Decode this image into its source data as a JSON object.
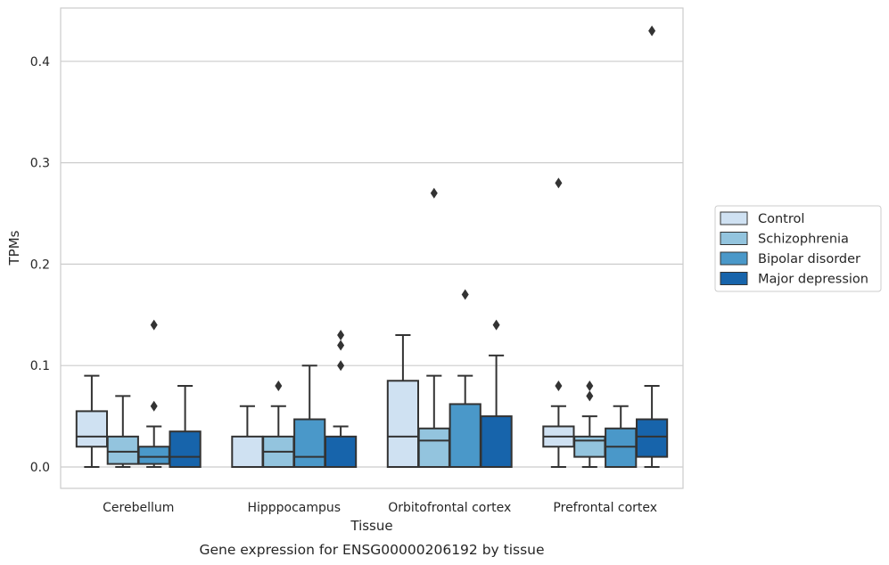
{
  "caption": "Gene expression for ENSG00000206192 by tissue",
  "colors": {
    "Control": "#cfe1f2",
    "Schizophrenia": "#93c4de",
    "Bipolar disorder": "#4a98c9",
    "Major depression": "#1764ab",
    "edge": "#333333",
    "grid": "#cccccc",
    "frame": "#cccccc"
  },
  "chart_data": {
    "type": "box",
    "xlabel": "Tissue",
    "ylabel": "TPMs",
    "ylim": [
      -0.021,
      0.455
    ],
    "yticks": [
      0.0,
      0.1,
      0.2,
      0.3,
      0.4
    ],
    "ytick_labels": [
      "0.0",
      "0.1",
      "0.2",
      "0.3",
      "0.4"
    ],
    "grid": true,
    "legend_position": "right, outside",
    "categories": [
      "Cerebellum",
      "Hipppocampus",
      "Orbitofrontal cortex",
      "Prefrontal cortex"
    ],
    "series": [
      {
        "name": "Control",
        "boxes": [
          {
            "min": 0.0,
            "q1": 0.02,
            "median": 0.03,
            "q3": 0.055,
            "max": 0.09,
            "outliers": []
          },
          {
            "min": 0.0,
            "q1": 0.0,
            "median": 0.0,
            "q3": 0.03,
            "max": 0.06,
            "outliers": []
          },
          {
            "min": 0.0,
            "q1": 0.0,
            "median": 0.03,
            "q3": 0.085,
            "max": 0.13,
            "outliers": []
          },
          {
            "min": 0.0,
            "q1": 0.02,
            "median": 0.03,
            "q3": 0.04,
            "max": 0.06,
            "outliers": [
              0.08,
              0.28
            ]
          }
        ]
      },
      {
        "name": "Schizophrenia",
        "boxes": [
          {
            "min": 0.0,
            "q1": 0.003,
            "median": 0.015,
            "q3": 0.03,
            "max": 0.07,
            "outliers": []
          },
          {
            "min": 0.0,
            "q1": 0.0,
            "median": 0.015,
            "q3": 0.03,
            "max": 0.06,
            "outliers": [
              0.08
            ]
          },
          {
            "min": 0.0,
            "q1": 0.0,
            "median": 0.026,
            "q3": 0.038,
            "max": 0.09,
            "outliers": [
              0.27
            ]
          },
          {
            "min": 0.0,
            "q1": 0.01,
            "median": 0.026,
            "q3": 0.03,
            "max": 0.05,
            "outliers": [
              0.07,
              0.08
            ]
          }
        ]
      },
      {
        "name": "Bipolar disorder",
        "boxes": [
          {
            "min": 0.0,
            "q1": 0.003,
            "median": 0.01,
            "q3": 0.02,
            "max": 0.04,
            "outliers": [
              0.06,
              0.14
            ]
          },
          {
            "min": 0.0,
            "q1": 0.0,
            "median": 0.01,
            "q3": 0.047,
            "max": 0.1,
            "outliers": []
          },
          {
            "min": 0.0,
            "q1": 0.0,
            "median": 0.0,
            "q3": 0.062,
            "max": 0.09,
            "outliers": [
              0.17
            ]
          },
          {
            "min": 0.0,
            "q1": 0.0,
            "median": 0.02,
            "q3": 0.038,
            "max": 0.06,
            "outliers": []
          }
        ]
      },
      {
        "name": "Major depression",
        "boxes": [
          {
            "min": 0.0,
            "q1": 0.0,
            "median": 0.01,
            "q3": 0.035,
            "max": 0.08,
            "outliers": []
          },
          {
            "min": 0.0,
            "q1": 0.0,
            "median": 0.0,
            "q3": 0.03,
            "max": 0.04,
            "outliers": [
              0.1,
              0.12,
              0.13
            ]
          },
          {
            "min": 0.0,
            "q1": 0.0,
            "median": 0.0,
            "q3": 0.05,
            "max": 0.11,
            "outliers": [
              0.14
            ]
          },
          {
            "min": 0.0,
            "q1": 0.01,
            "median": 0.03,
            "q3": 0.047,
            "max": 0.08,
            "outliers": [
              0.43
            ]
          }
        ]
      }
    ]
  }
}
